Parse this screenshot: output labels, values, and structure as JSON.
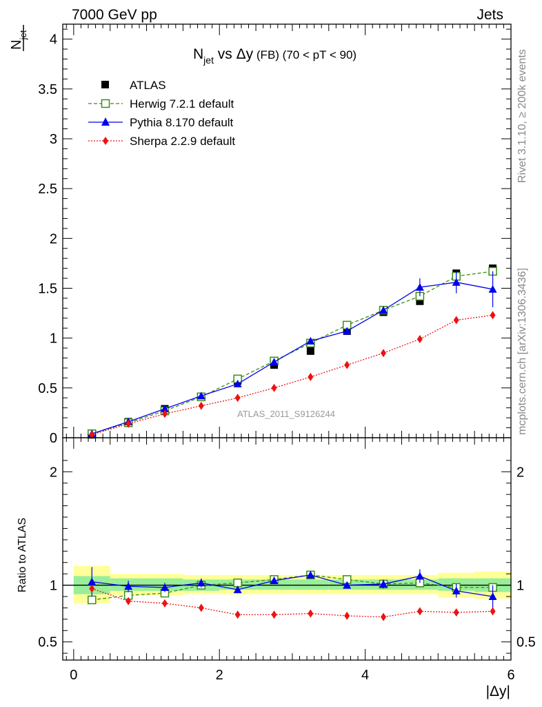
{
  "header": {
    "left": "7000 GeV pp",
    "right": "Jets"
  },
  "side_labels": {
    "top": "Rivet 3.1.10, ≥ 200k events",
    "bottom": "mcplots.cern.ch [arXiv:1306.3436]"
  },
  "watermark": "ATLAS_2011_S9126244",
  "chart_data": [
    {
      "type": "line",
      "title_main": "N",
      "title_sub": "jet",
      "title_rest": " vs Δy",
      "title_small": " (FB)",
      "title_range": "  (70 < pT <  90)",
      "ylabel_main": "N",
      "ylabel_sub": "jet",
      "xlim": [
        -0.15,
        6.0
      ],
      "ylim": [
        0,
        4.15
      ],
      "y_ticks": [
        0,
        0.5,
        1,
        1.5,
        2,
        2.5,
        3,
        3.5,
        4
      ],
      "y_tick_labels": [
        "0",
        "0.5",
        "1",
        "1.5",
        "2",
        "2.5",
        "3",
        "3.5",
        "4"
      ],
      "x": [
        0.25,
        0.75,
        1.25,
        1.75,
        2.25,
        2.75,
        3.25,
        3.75,
        4.25,
        4.75,
        5.25,
        5.75
      ],
      "legend": [
        "ATLAS",
        "Herwig 7.2.1 default",
        "Pythia 8.170 default",
        "Sherpa 2.2.9 default"
      ],
      "series": [
        {
          "name": "ATLAS",
          "values": [
            0.03,
            0.16,
            0.29,
            0.41,
            0.57,
            0.73,
            0.87,
            1.07,
            1.26,
            1.37,
            1.65,
            1.7
          ]
        },
        {
          "name": "Herwig 7.2.1 default",
          "values": [
            0.04,
            0.15,
            0.27,
            0.41,
            0.59,
            0.77,
            0.95,
            1.13,
            1.28,
            1.42,
            1.62,
            1.67
          ]
        },
        {
          "name": "Pythia 8.170 default",
          "values": [
            0.04,
            0.16,
            0.29,
            0.42,
            0.54,
            0.76,
            0.97,
            1.07,
            1.28,
            1.51,
            1.56,
            1.49
          ]
        },
        {
          "name": "Sherpa 2.2.9 default",
          "values": [
            0.03,
            0.14,
            0.24,
            0.32,
            0.4,
            0.5,
            0.61,
            0.73,
            0.85,
            0.99,
            1.18,
            1.23
          ]
        }
      ]
    },
    {
      "type": "line",
      "ylabel": "Ratio to ATLAS",
      "xlabel": "|Δy|",
      "xlim": [
        -0.15,
        6.0
      ],
      "ylim": [
        0.34,
        2.3
      ],
      "y_ticks": [
        0.5,
        1,
        2
      ],
      "y_tick_labels": [
        "0.5",
        "1",
        "2"
      ],
      "x_ticks": [
        0,
        2,
        4,
        6
      ],
      "x_tick_labels": [
        "0",
        "2",
        "4",
        "6"
      ],
      "x": [
        0.25,
        0.75,
        1.25,
        1.75,
        2.25,
        2.75,
        3.25,
        3.75,
        4.25,
        4.75,
        5.25,
        5.75
      ],
      "band_edges": [
        0,
        0.5,
        1,
        1.5,
        2,
        2.5,
        3,
        3.5,
        4,
        4.5,
        5,
        5.5,
        6
      ],
      "band_inner": [
        [
          0.92,
          1.08
        ],
        [
          0.95,
          1.06
        ],
        [
          0.95,
          1.06
        ],
        [
          0.95,
          1.05
        ],
        [
          0.96,
          1.05
        ],
        [
          0.96,
          1.05
        ],
        [
          0.96,
          1.05
        ],
        [
          0.96,
          1.05
        ],
        [
          0.96,
          1.05
        ],
        [
          0.96,
          1.05
        ],
        [
          0.95,
          1.06
        ],
        [
          0.94,
          1.06
        ]
      ],
      "band_outer": [
        [
          0.84,
          1.17
        ],
        [
          0.91,
          1.1
        ],
        [
          0.91,
          1.1
        ],
        [
          0.92,
          1.09
        ],
        [
          0.92,
          1.09
        ],
        [
          0.92,
          1.09
        ],
        [
          0.92,
          1.09
        ],
        [
          0.92,
          1.09
        ],
        [
          0.92,
          1.09
        ],
        [
          0.92,
          1.09
        ],
        [
          0.89,
          1.11
        ],
        [
          0.88,
          1.12
        ]
      ],
      "series": [
        {
          "name": "Herwig 7.2.1 default",
          "values": [
            0.87,
            0.91,
            0.93,
            1.0,
            1.02,
            1.05,
            1.09,
            1.05,
            1.01,
            1.02,
            0.98,
            0.98
          ]
        },
        {
          "name": "Pythia 8.170 default",
          "values": [
            1.03,
            0.99,
            0.98,
            1.02,
            0.96,
            1.04,
            1.09,
            1.0,
            1.01,
            1.08,
            0.95,
            0.9
          ]
        },
        {
          "name": "Sherpa 2.2.9 default",
          "values": [
            0.97,
            0.86,
            0.84,
            0.8,
            0.74,
            0.74,
            0.75,
            0.73,
            0.72,
            0.77,
            0.76,
            0.77
          ]
        }
      ]
    }
  ],
  "colors": {
    "herwig": "#3a8c14",
    "pythia": "#0000ee",
    "sherpa": "#ee1111",
    "atlas": "#000000",
    "band_inner": "#99ee99",
    "band_outer": "#ffff99"
  }
}
